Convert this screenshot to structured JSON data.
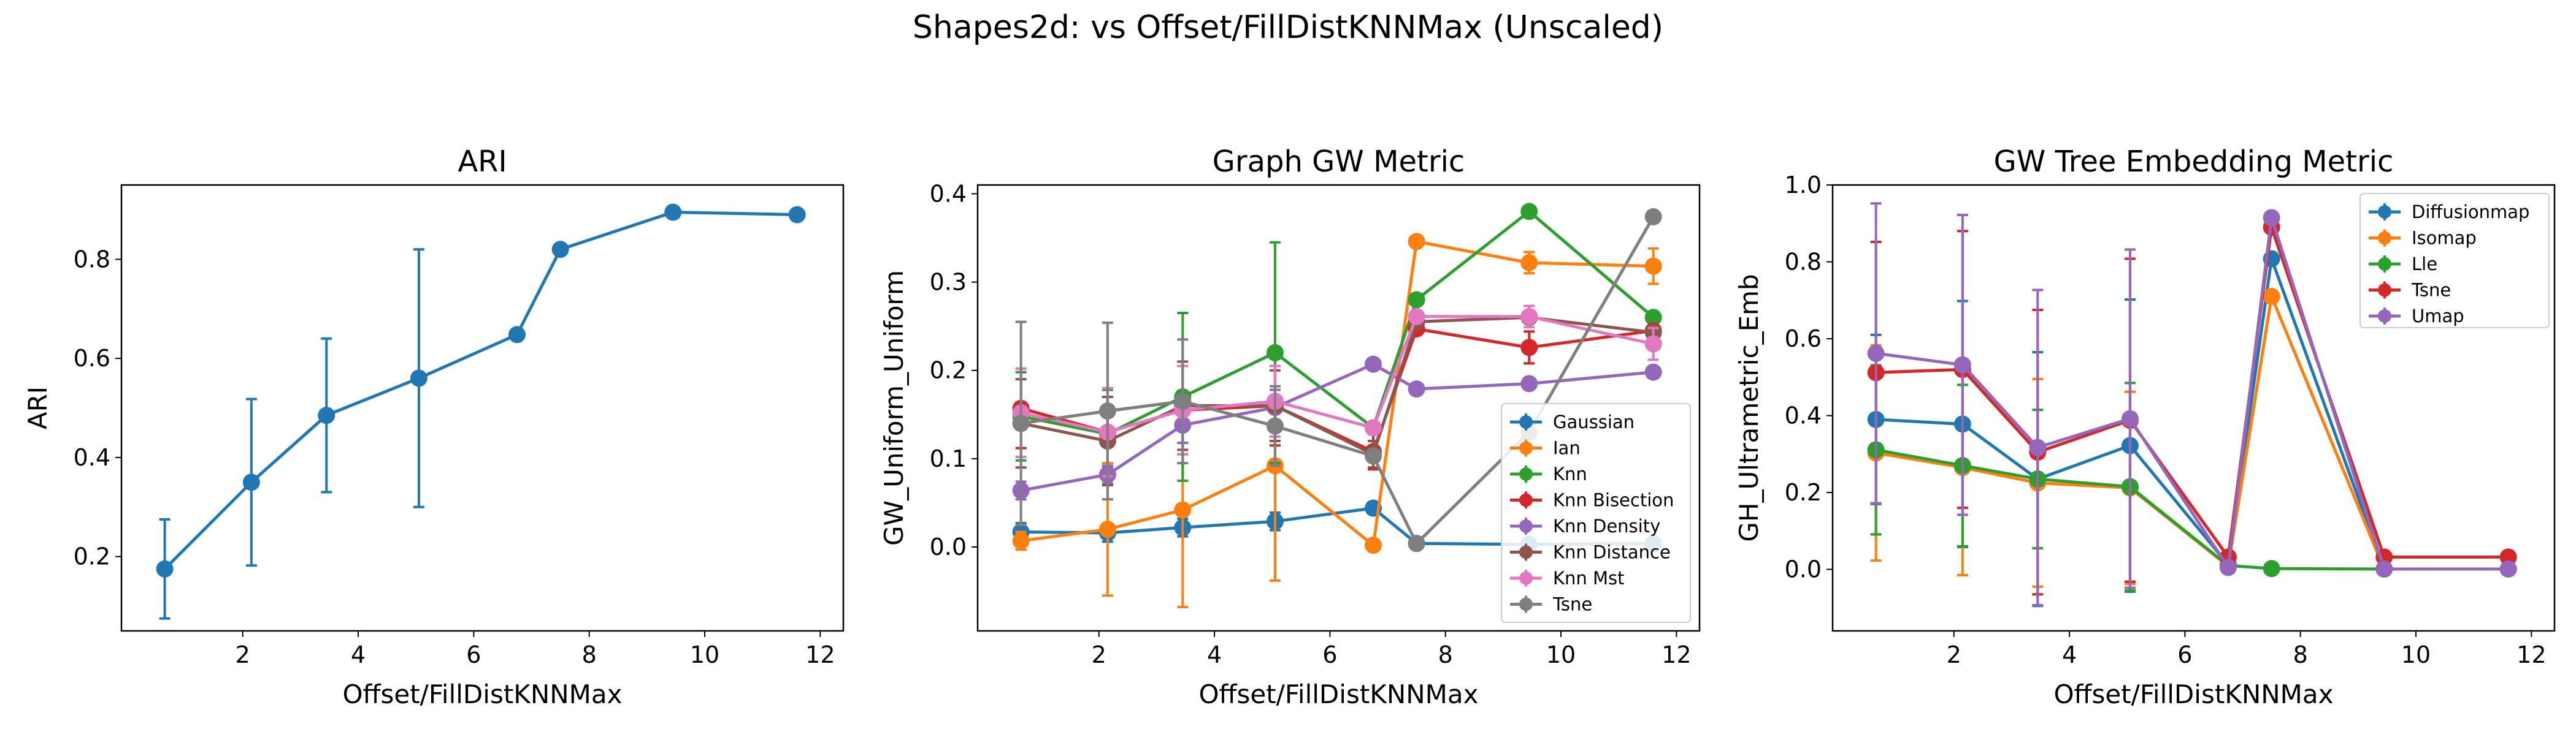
{
  "figure": {
    "suptitle": "Shapes2d: vs Offset/FillDistKNNMax (Unscaled)"
  },
  "colors": {
    "blue": "#1f77b4",
    "orange": "#ff7f0e",
    "green": "#2ca02c",
    "red": "#d62728",
    "purple": "#9467bd",
    "brown": "#8c564b",
    "pink": "#e377c2",
    "gray": "#7f7f7f"
  },
  "chart_data": [
    {
      "type": "line",
      "title": "ARI",
      "xlabel": "Offset/FillDistKNNMax",
      "ylabel": "ARI",
      "xlim": [
        -0.1,
        12.4
      ],
      "ylim": [
        0.05,
        0.95
      ],
      "xticks": [
        2,
        4,
        6,
        8,
        10,
        12
      ],
      "yticks": [
        0.2,
        0.4,
        0.6,
        0.8
      ],
      "series": [
        {
          "color": "#1f77b4",
          "x": [
            0.65,
            2.15,
            3.45,
            5.05,
            6.75,
            7.5,
            9.45,
            11.6
          ],
          "y": [
            0.175,
            0.35,
            0.485,
            0.56,
            0.648,
            0.82,
            0.895,
            0.89
          ],
          "err": [
            0.1,
            0.168,
            0.155,
            0.26,
            0,
            0,
            0,
            0
          ]
        }
      ]
    },
    {
      "type": "line",
      "title": "Graph GW Metric",
      "xlabel": "Offset/FillDistKNNMax",
      "ylabel": "GW_Uniform_Uniform",
      "xlim": [
        -0.1,
        12.4
      ],
      "ylim": [
        -0.095,
        0.41
      ],
      "xticks": [
        2,
        4,
        6,
        8,
        10,
        12
      ],
      "yticks": [
        0.0,
        0.1,
        0.2,
        0.3,
        0.4
      ],
      "ytick_labels": [
        "0.0",
        "0.1",
        "0.2",
        "0.3",
        "0.4"
      ],
      "legend_loc": "lower right",
      "series": [
        {
          "name": "Gaussian",
          "color": "#1f77b4",
          "x": [
            0.65,
            2.15,
            3.45,
            5.05,
            6.75,
            7.5,
            9.45,
            11.6
          ],
          "y": [
            0.017,
            0.016,
            0.022,
            0.029,
            0.044,
            0.004,
            0.003,
            0.004
          ],
          "err": [
            0.01,
            0.01,
            0.01,
            0.01,
            0,
            0,
            0,
            0
          ]
        },
        {
          "name": "Ian",
          "color": "#ff7f0e",
          "x": [
            0.65,
            2.15,
            3.45,
            5.05,
            6.75,
            7.5,
            9.45,
            11.6
          ],
          "y": [
            0.007,
            0.02,
            0.042,
            0.092,
            0.002,
            0.346,
            0.322,
            0.318
          ],
          "err": [
            0.01,
            0.075,
            0.11,
            0.13,
            0,
            0,
            0.012,
            0.02
          ]
        },
        {
          "name": "Knn",
          "color": "#2ca02c",
          "x": [
            0.65,
            2.15,
            3.45,
            5.05,
            6.75,
            7.5,
            9.45,
            11.6
          ],
          "y": [
            0.148,
            0.128,
            0.17,
            0.22,
            0.135,
            0.28,
            0.38,
            0.26
          ],
          "err": [
            0.05,
            0.05,
            0.095,
            0.125,
            0,
            0,
            0,
            0
          ]
        },
        {
          "name": "Knn Bisection",
          "color": "#d62728",
          "x": [
            0.65,
            2.15,
            3.45,
            5.05,
            6.75,
            7.5,
            9.45,
            11.6
          ],
          "y": [
            0.157,
            0.13,
            0.155,
            0.16,
            0.108,
            0.247,
            0.226,
            0.245
          ],
          "err": [
            0.045,
            0.04,
            0.05,
            0.045,
            0.02,
            0,
            0.018,
            0
          ]
        },
        {
          "name": "Knn Density",
          "color": "#9467bd",
          "x": [
            0.65,
            2.15,
            3.45,
            5.05,
            6.75,
            7.5,
            9.45,
            11.6
          ],
          "y": [
            0.064,
            0.082,
            0.138,
            0.158,
            0.207,
            0.179,
            0.185,
            0.198
          ],
          "err": [
            0.01,
            0.01,
            0.02,
            0.02,
            0,
            0,
            0,
            0
          ]
        },
        {
          "name": "Knn Distance",
          "color": "#8c564b",
          "x": [
            0.65,
            2.15,
            3.45,
            5.05,
            6.75,
            7.5,
            9.45,
            11.6
          ],
          "y": [
            0.14,
            0.12,
            0.16,
            0.16,
            0.105,
            0.255,
            0.26,
            0.243
          ],
          "err": [
            0.05,
            0.05,
            0.05,
            0.04,
            0.015,
            0,
            0,
            0
          ]
        },
        {
          "name": "Knn Mst",
          "color": "#e377c2",
          "x": [
            0.65,
            2.15,
            3.45,
            5.05,
            6.75,
            7.5,
            9.45,
            11.6
          ],
          "y": [
            0.152,
            0.13,
            0.155,
            0.165,
            0.135,
            0.261,
            0.261,
            0.23
          ],
          "err": [
            0.05,
            0.05,
            0.05,
            0.04,
            0,
            0,
            0.012,
            0.018
          ]
        },
        {
          "name": "Tsne",
          "color": "#7f7f7f",
          "x": [
            0.65,
            2.15,
            3.45,
            5.05,
            6.75,
            7.5,
            9.45,
            11.6
          ],
          "y": [
            0.14,
            0.154,
            0.165,
            0.137,
            0.103,
            0.004,
            0.13,
            0.374
          ],
          "err": [
            0.115,
            0.1,
            0.07,
            0.045,
            0,
            0,
            0,
            0
          ]
        }
      ]
    },
    {
      "type": "line",
      "title": "GW Tree Embedding Metric",
      "xlabel": "Offset/FillDistKNNMax",
      "ylabel": "GH_Ultrametric_Emb",
      "xlim": [
        -0.1,
        12.4
      ],
      "ylim": [
        -0.16,
        1.0
      ],
      "xticks": [
        2,
        4,
        6,
        8,
        10,
        12
      ],
      "yticks": [
        0.0,
        0.2,
        0.4,
        0.6,
        0.8,
        1.0
      ],
      "ytick_labels": [
        "0.0",
        "0.2",
        "0.4",
        "0.6",
        "0.8",
        "1.0"
      ],
      "legend_loc": "upper right",
      "series": [
        {
          "name": "Diffusionmap",
          "color": "#1f77b4",
          "x": [
            0.65,
            2.15,
            3.45,
            5.05,
            6.75,
            7.5,
            9.45,
            11.6
          ],
          "y": [
            0.39,
            0.378,
            0.235,
            0.322,
            0.012,
            0.808,
            0.001,
            0.001
          ],
          "err": [
            0.22,
            0.32,
            0.33,
            0.38,
            0,
            0,
            0,
            0
          ]
        },
        {
          "name": "Isomap",
          "color": "#ff7f0e",
          "x": [
            0.65,
            2.15,
            3.45,
            5.05,
            6.75,
            7.5,
            9.45,
            11.6
          ],
          "y": [
            0.303,
            0.265,
            0.225,
            0.212,
            0.008,
            0.71,
            0.001,
            0.001
          ],
          "err": [
            0.28,
            0.28,
            0.27,
            0.25,
            0,
            0,
            0,
            0
          ]
        },
        {
          "name": "Lle",
          "color": "#2ca02c",
          "x": [
            0.65,
            2.15,
            3.45,
            5.05,
            6.75,
            7.5,
            9.45,
            11.6
          ],
          "y": [
            0.311,
            0.27,
            0.235,
            0.215,
            0.01,
            0.002,
            0.001,
            0.001
          ],
          "err": [
            0.22,
            0.21,
            0.18,
            0.27,
            0,
            0,
            0,
            0
          ]
        },
        {
          "name": "Tsne",
          "color": "#d62728",
          "x": [
            0.65,
            2.15,
            3.45,
            5.05,
            6.75,
            7.5,
            9.45,
            11.6
          ],
          "y": [
            0.512,
            0.52,
            0.305,
            0.388,
            0.032,
            0.89,
            0.032,
            0.032
          ],
          "err": [
            0.34,
            0.36,
            0.37,
            0.42,
            0,
            0,
            0,
            0
          ]
        },
        {
          "name": "Umap",
          "color": "#9467bd",
          "x": [
            0.65,
            2.15,
            3.45,
            5.05,
            6.75,
            7.5,
            9.45,
            11.6
          ],
          "y": [
            0.562,
            0.532,
            0.317,
            0.392,
            0.005,
            0.915,
            0.001,
            0.001
          ],
          "err": [
            0.39,
            0.39,
            0.41,
            0.44,
            0,
            0,
            0,
            0
          ]
        }
      ]
    }
  ]
}
